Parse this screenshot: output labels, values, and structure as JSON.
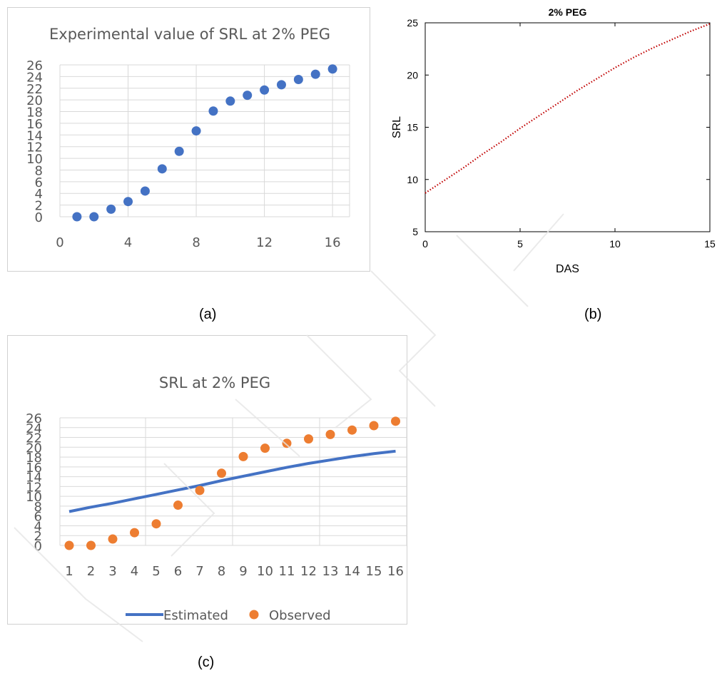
{
  "colors": {
    "scatter_blue": "#4472c4",
    "line_blue": "#4472c4",
    "observed_orange": "#ed7d31",
    "fit_red": "#c00000",
    "grid": "#d9d9d9",
    "frame": "#d0d0d0"
  },
  "panels": {
    "a": {
      "caption": "(a)"
    },
    "b": {
      "caption": "(b)"
    },
    "c": {
      "caption": "(c)"
    }
  },
  "chart_data": [
    {
      "id": "a",
      "type": "scatter",
      "title": "Experimental value of SRL at 2% PEG",
      "xlabel": "",
      "ylabel": "",
      "xlim": [
        0,
        17
      ],
      "ylim": [
        0,
        26
      ],
      "xticks": [
        "0",
        "4",
        "8",
        "12",
        "16"
      ],
      "yticks": [
        "0",
        "2",
        "4",
        "6",
        "8",
        "10",
        "12",
        "14",
        "16",
        "18",
        "20",
        "22",
        "24",
        "26"
      ],
      "grid": true,
      "series": [
        {
          "name": "",
          "x": [
            1,
            2,
            3,
            4,
            5,
            6,
            7,
            8,
            9,
            10,
            11,
            12,
            13,
            14,
            15,
            16
          ],
          "y": [
            0,
            0,
            1.3,
            2.6,
            4.4,
            8.2,
            11.2,
            14.7,
            18.1,
            19.8,
            20.8,
            21.7,
            22.6,
            23.5,
            24.4,
            25.3
          ]
        }
      ]
    },
    {
      "id": "b",
      "type": "line",
      "title": "2% PEG",
      "xlabel": "DAS",
      "ylabel": "SRL",
      "xlim": [
        0,
        15
      ],
      "ylim": [
        5,
        25
      ],
      "xticks": [
        "0",
        "5",
        "10",
        "15"
      ],
      "yticks": [
        "5",
        "10",
        "15",
        "20",
        "25"
      ],
      "grid": false,
      "series": [
        {
          "name": "",
          "x": [
            0,
            1,
            2,
            3,
            4,
            5,
            6,
            7,
            8,
            9,
            10,
            11,
            12,
            13,
            14,
            15
          ],
          "y": [
            8.7,
            9.9,
            11.1,
            12.4,
            13.6,
            14.9,
            16.1,
            17.3,
            18.5,
            19.6,
            20.7,
            21.7,
            22.6,
            23.4,
            24.2,
            24.9
          ]
        }
      ]
    },
    {
      "id": "c",
      "type": "line",
      "title": "SRL at 2% PEG",
      "xlabel": "",
      "ylabel": "",
      "ylim": [
        0,
        26
      ],
      "categories": [
        "1",
        "2",
        "3",
        "4",
        "5",
        "6",
        "7",
        "8",
        "9",
        "10",
        "11",
        "12",
        "13",
        "14",
        "15",
        "16"
      ],
      "yticks": [
        "0",
        "2",
        "4",
        "6",
        "8",
        "10",
        "12",
        "14",
        "16",
        "18",
        "20",
        "22",
        "24",
        "26"
      ],
      "grid": true,
      "legend": "bottom",
      "series": [
        {
          "name": "Estimated",
          "style": "line",
          "values": [
            6.9,
            7.8,
            8.6,
            9.5,
            10.4,
            11.3,
            12.2,
            13.2,
            14.1,
            15.0,
            15.9,
            16.7,
            17.4,
            18.1,
            18.7,
            19.2
          ]
        },
        {
          "name": "Observed",
          "style": "markers",
          "values": [
            0,
            0,
            1.3,
            2.6,
            4.4,
            8.2,
            11.2,
            14.7,
            18.1,
            19.8,
            20.8,
            21.7,
            22.6,
            23.5,
            24.4,
            25.3
          ]
        }
      ]
    }
  ]
}
